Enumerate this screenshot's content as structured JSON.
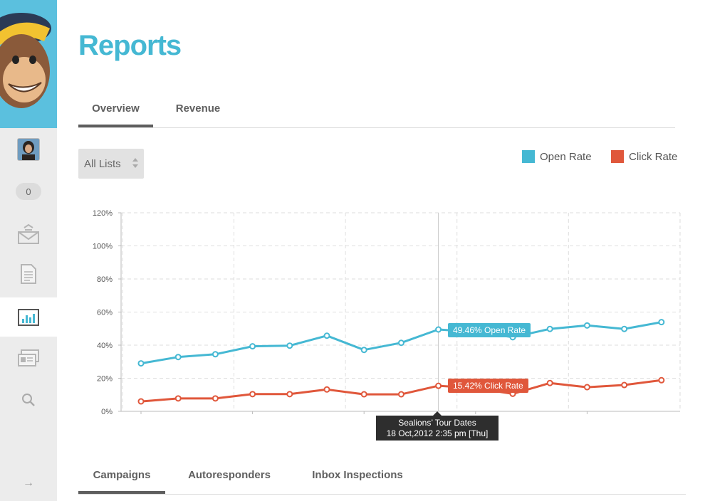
{
  "page": {
    "title": "Reports"
  },
  "sidebar": {
    "notification_count": "0",
    "items": [
      {
        "name": "campaigns",
        "icon": "mail-stack-icon"
      },
      {
        "name": "templates",
        "icon": "document-icon"
      },
      {
        "name": "reports",
        "icon": "bar-chart-icon",
        "active": true
      },
      {
        "name": "forms",
        "icon": "id-cards-icon"
      },
      {
        "name": "search",
        "icon": "search-icon"
      }
    ],
    "expand_icon": "→"
  },
  "top_tabs": [
    {
      "label": "Overview",
      "active": true
    },
    {
      "label": "Revenue",
      "active": false
    }
  ],
  "list_select": {
    "value": "All Lists"
  },
  "legend": [
    {
      "label": "Open Rate",
      "color": "#45b8d3"
    },
    {
      "label": "Click Rate",
      "color": "#e0573b"
    }
  ],
  "chart_data": {
    "type": "line",
    "x": [
      1,
      2,
      3,
      4,
      5,
      6,
      7,
      8,
      9,
      10,
      11,
      12,
      13,
      14,
      15
    ],
    "series": [
      {
        "name": "Open Rate",
        "color": "#45b8d3",
        "values": [
          29.0,
          32.8,
          34.5,
          39.3,
          39.7,
          45.7,
          37.1,
          41.4,
          49.46,
          48.0,
          44.8,
          49.8,
          51.9,
          49.8,
          53.9
        ]
      },
      {
        "name": "Click Rate",
        "color": "#e0573b",
        "values": [
          6.0,
          7.8,
          7.8,
          10.4,
          10.4,
          13.2,
          10.3,
          10.3,
          15.42,
          14.0,
          10.6,
          17.1,
          14.6,
          15.9,
          18.8
        ]
      }
    ],
    "ylim": [
      0,
      120
    ],
    "yticks": [
      "0%",
      "20%",
      "40%",
      "60%",
      "80%",
      "100%",
      "120%"
    ],
    "grid": true,
    "highlight_index": 8,
    "callouts": {
      "open": "49.46% Open Rate",
      "click": "15.42% Click Rate"
    },
    "tooltip": {
      "title": "Sealions’ Tour Dates",
      "date": "18 Oct,2012 2:35 pm [Thu]"
    }
  },
  "bottom_tabs": [
    {
      "label": "Campaigns",
      "active": true
    },
    {
      "label": "Autoresponders",
      "active": false
    },
    {
      "label": "Inbox Inspections",
      "active": false
    }
  ]
}
